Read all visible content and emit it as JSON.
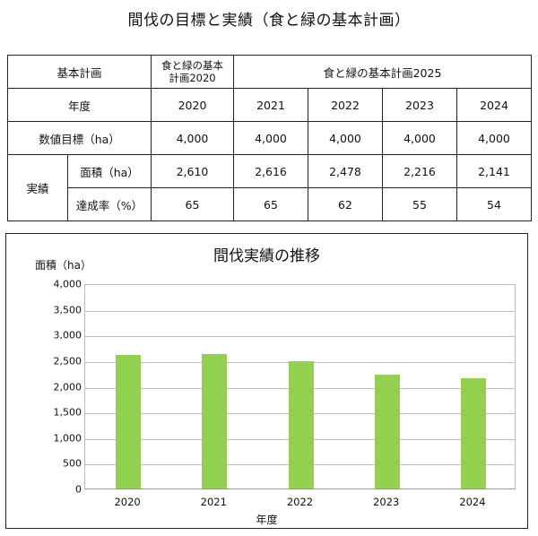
{
  "page_title": "間伐の目標と実績（食と緑の基本計画）",
  "table": {
    "plan_header": "基本計画",
    "plan_2020": "食と緑の基本計画2020",
    "plan_2020_line1": "食と緑の基本",
    "plan_2020_line2": "計画2020",
    "plan_2025": "食と緑の基本計画2025",
    "year_label": "年度",
    "years": [
      "2020",
      "2021",
      "2022",
      "2023",
      "2024"
    ],
    "target_label": "数値目標（ha）",
    "targets": [
      "4,000",
      "4,000",
      "4,000",
      "4,000",
      "4,000"
    ],
    "actual_label": "実績",
    "area_label": "面積（ha）",
    "areas": [
      "2,610",
      "2,616",
      "2,478",
      "2,216",
      "2,141"
    ],
    "rate_label": "達成率（%）",
    "rates": [
      "65",
      "65",
      "62",
      "55",
      "54"
    ]
  },
  "chart_data": {
    "type": "bar",
    "title": "間伐実績の推移",
    "xlabel": "年度",
    "ylabel": "面積（ha）",
    "categories": [
      "2020",
      "2021",
      "2022",
      "2023",
      "2024"
    ],
    "values": [
      2610,
      2616,
      2478,
      2216,
      2141
    ],
    "ylim": [
      0,
      4000
    ],
    "yticks": [
      "0",
      "500",
      "1,000",
      "1,500",
      "2,000",
      "2,500",
      "3,000",
      "3,500",
      "4,000"
    ],
    "grid": true,
    "legend": "none",
    "bar_color": "#92d050"
  }
}
